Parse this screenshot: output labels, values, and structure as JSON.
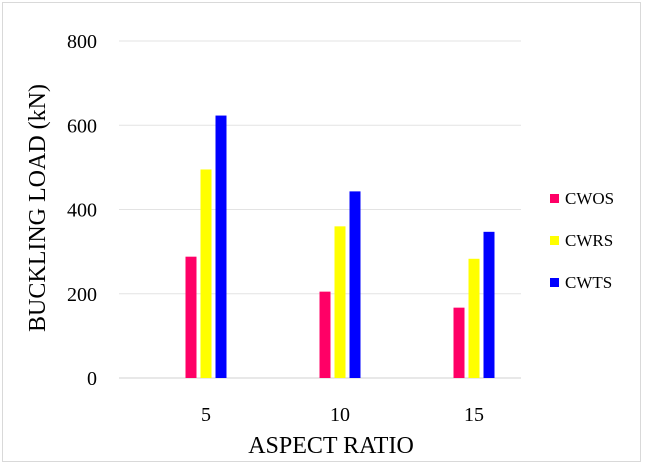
{
  "chart_data": {
    "type": "bar",
    "title": "",
    "xlabel": "ASPECT RATIO",
    "ylabel": "BUCKLING LOAD (kN)",
    "categories": [
      "5",
      "10",
      "15"
    ],
    "ylim": [
      0,
      800
    ],
    "yticks": [
      0,
      200,
      400,
      600,
      800
    ],
    "grid": true,
    "legend_position": "right",
    "series": [
      {
        "name": "CWOS",
        "color": "#ff0066",
        "values": [
          288,
          205,
          167
        ]
      },
      {
        "name": "CWRS",
        "color": "#ffff00",
        "values": [
          495,
          360,
          283
        ]
      },
      {
        "name": "CWTS",
        "color": "#0000ff",
        "values": [
          623,
          443,
          347
        ]
      }
    ]
  }
}
